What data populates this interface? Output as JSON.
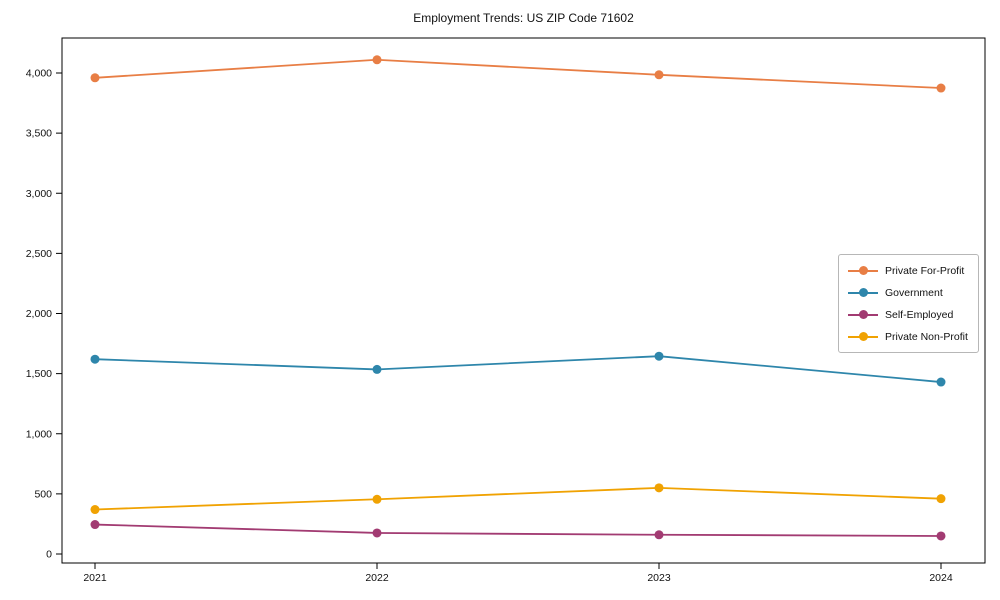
{
  "title": "Employment Trends: US ZIP Code 71602",
  "chart_data": {
    "type": "line",
    "title": "Employment Trends: US ZIP Code 71602",
    "xlabel": "",
    "ylabel": "",
    "x_categories": [
      "2021",
      "2022",
      "2023",
      "2024"
    ],
    "series": [
      {
        "name": "Private For-Profit",
        "color": "#E87E45",
        "values": [
          3960,
          4110,
          3985,
          3875
        ]
      },
      {
        "name": "Government",
        "color": "#2E86AB",
        "values": [
          1620,
          1535,
          1645,
          1430
        ]
      },
      {
        "name": "Self-Employed",
        "color": "#A23B72",
        "values": [
          245,
          175,
          160,
          150
        ]
      },
      {
        "name": "Private Non-Profit",
        "color": "#F0A202",
        "values": [
          370,
          455,
          550,
          460
        ]
      }
    ],
    "yticks": [
      0,
      500,
      1000,
      1500,
      2000,
      2500,
      3000,
      3500,
      4000
    ],
    "ytick_labels": [
      "0",
      "500",
      "1,000",
      "1,500",
      "2,000",
      "2,500",
      "3,000",
      "3,500",
      "4,000"
    ],
    "ylim": [
      -80,
      4300
    ],
    "grid": false,
    "legend_position": "center-right",
    "marker": "circle",
    "axis_color": "#000000",
    "tick_label_color": "#111111"
  }
}
